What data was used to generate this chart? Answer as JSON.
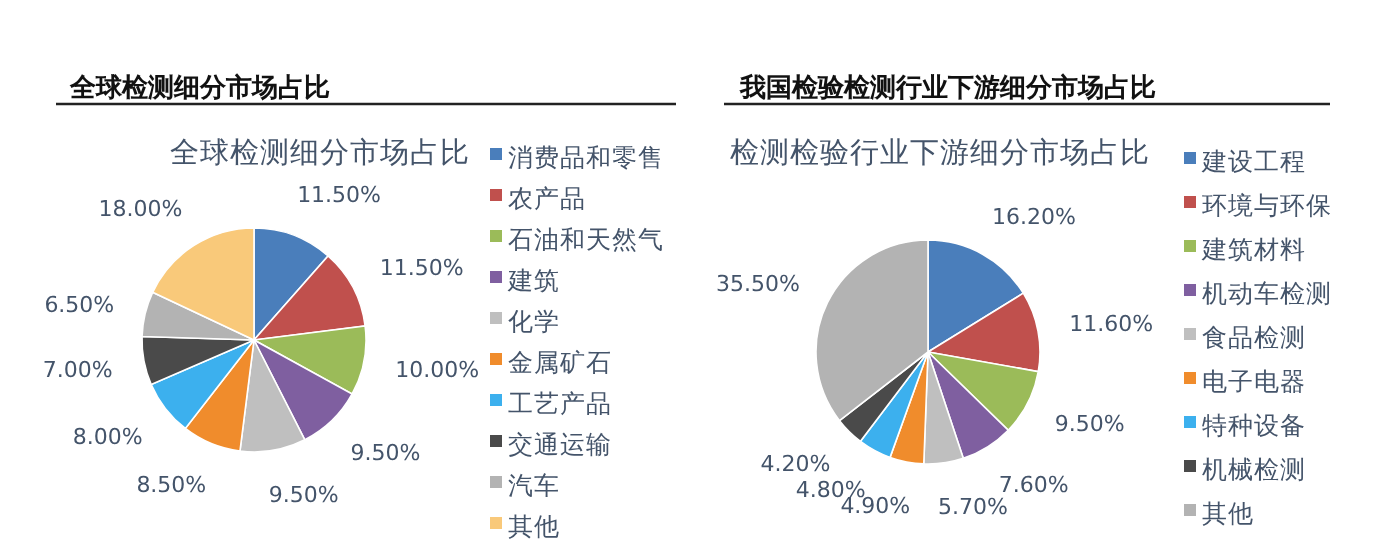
{
  "chart_data": [
    {
      "type": "pie",
      "title": "全球检测细分市场占比",
      "subtitle": "全球检测细分市场占比",
      "legend": "right",
      "categories": [
        "消费品和零售",
        "农产品",
        "石油和天然气",
        "建筑",
        "化学",
        "金属矿石",
        "工艺产品",
        "交通运输",
        "汽车",
        "其他"
      ],
      "values": [
        11.5,
        11.5,
        10,
        9.5,
        9.5,
        8.5,
        8,
        7,
        6.5,
        18
      ],
      "value_labels": [
        "11.50%",
        "11.50%",
        "10.00%",
        "9.50%",
        "9.50%",
        "8.50%",
        "8.00%",
        "7.00%",
        "6.50%",
        "18.00%"
      ],
      "colors": [
        "#4a7ebb",
        "#c0504d",
        "#9bbb59",
        "#7f5fa0",
        "#bfbfbf",
        "#f08c2c",
        "#3cb0ee",
        "#4a4a4a",
        "#b3b3b3",
        "#f9c97a"
      ]
    },
    {
      "type": "pie",
      "title": "我国检验检测行业下游细分市场占比",
      "subtitle": "检测检验行业下游细分市场占比",
      "legend": "right",
      "categories": [
        "建设工程",
        "环境与环保",
        "建筑材料",
        "机动车检测",
        "食品检测",
        "电子电器",
        "特种设备",
        "机械检测",
        "其他"
      ],
      "values": [
        16.2,
        11.6,
        9.5,
        7.6,
        5.7,
        4.9,
        4.8,
        4.2,
        35.5
      ],
      "value_labels": [
        "16.20%",
        "11.60%",
        "9.50%",
        "7.60%",
        "5.70%",
        "4.90%",
        "4.80%",
        "4.20%",
        "35.50%"
      ],
      "colors": [
        "#4a7ebb",
        "#c0504d",
        "#9bbb59",
        "#7f5fa0",
        "#bfbfbf",
        "#f08c2c",
        "#3cb0ee",
        "#4a4a4a",
        "#b3b3b3"
      ]
    }
  ]
}
